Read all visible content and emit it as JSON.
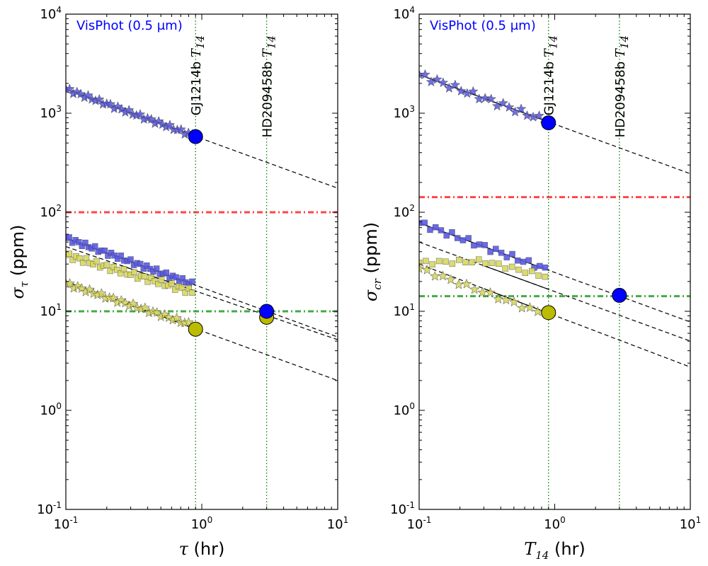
{
  "chart_data": [
    {
      "type": "scatter",
      "id": "left",
      "xscale": "log",
      "yscale": "log",
      "xlim": [
        0.1,
        10
      ],
      "ylim": [
        0.1,
        10000
      ],
      "xlabel_symbol": "τ",
      "xlabel_unit": " (hr)",
      "ylabel_symbol": "σ",
      "ylabel_sub": "τ",
      "ylabel_unit": " (ppm)",
      "xtick_exps": [
        "-1",
        "0",
        "1"
      ],
      "ytick_exps": [
        "-1",
        "0",
        "1",
        "2",
        "3",
        "4"
      ],
      "tick_base": "10",
      "annotation": "VisPhot (0.5 μm)",
      "annotation_color": "#0000ff",
      "vlines": [
        {
          "x": 0.9,
          "name": "GJ1214b",
          "suffix": "T",
          "suffix_sub": "14",
          "color": "#008000"
        },
        {
          "x": 3.0,
          "name": "HD209458b",
          "suffix": "T",
          "suffix_sub": "14",
          "color": "#008000"
        }
      ],
      "hlines": [
        {
          "y": 100,
          "color": "#ff3333",
          "style": "dashdot"
        },
        {
          "y": 10,
          "color": "#33a033",
          "style": "dashdot"
        }
      ],
      "series": [
        {
          "name": "blue-stars",
          "marker": "star",
          "color": "#6060e0",
          "x_range": [
            0.1,
            0.85
          ],
          "n": 35,
          "y_at_01": 1750,
          "slope": -0.5,
          "jitter": 0.02
        },
        {
          "name": "blue-squares",
          "marker": "square",
          "color": "#5a5ae6",
          "x_range": [
            0.1,
            0.85
          ],
          "n": 40,
          "y_at_01": 55,
          "slope": -0.5,
          "jitter": 0.025
        },
        {
          "name": "yellow-squares",
          "marker": "square",
          "color": "#d8d860",
          "x_range": [
            0.1,
            0.85
          ],
          "n": 38,
          "y_at_01": 37,
          "slope": -0.4,
          "jitter": 0.03
        },
        {
          "name": "yellow-stars",
          "marker": "star",
          "color": "#d8d860",
          "x_range": [
            0.1,
            0.8
          ],
          "n": 32,
          "y_at_01": 19,
          "slope": -0.45,
          "jitter": 0.02
        }
      ],
      "fits": [
        {
          "y_at_01": 1750,
          "slope": -0.5,
          "solid_to": 0.9
        },
        {
          "y_at_01": 55,
          "slope": -0.5,
          "solid_to": 0.9
        },
        {
          "y_at_01": 45,
          "slope": -0.47,
          "solid_from": 0.25,
          "solid_to": 0.9
        },
        {
          "y_at_01": 20,
          "slope": -0.5,
          "solid_from": 0.35,
          "solid_to": 0.9
        }
      ],
      "points": [
        {
          "x": 0.9,
          "y": 580,
          "color": "#0000ff"
        },
        {
          "x": 0.9,
          "y": 6.6,
          "color": "#bbbb00"
        },
        {
          "x": 3.0,
          "y": 8.7,
          "color": "#bbbb00"
        },
        {
          "x": 3.0,
          "y": 10,
          "color": "#0000ff"
        }
      ]
    },
    {
      "type": "scatter",
      "id": "right",
      "xscale": "log",
      "yscale": "log",
      "xlim": [
        0.1,
        10
      ],
      "ylim": [
        0.1,
        10000
      ],
      "xlabel_symbol": "T",
      "xlabel_sub": "14",
      "xlabel_unit": " (hr)",
      "ylabel_symbol": "σ",
      "ylabel_sub": "cr",
      "ylabel_unit": " (ppm)",
      "xtick_exps": [
        "-1",
        "0",
        "1"
      ],
      "ytick_exps": [
        "-1",
        "0",
        "1",
        "2",
        "3",
        "4"
      ],
      "tick_base": "10",
      "annotation": "VisPhot (0.5 μm)",
      "annotation_color": "#0000ff",
      "vlines": [
        {
          "x": 0.9,
          "name": "GJ1214b",
          "suffix": "T",
          "suffix_sub": "14",
          "color": "#008000"
        },
        {
          "x": 3.0,
          "name": "HD209458b",
          "suffix": "T",
          "suffix_sub": "14",
          "color": "#008000"
        }
      ],
      "hlines": [
        {
          "y": 142,
          "color": "#ff3333",
          "style": "dashdot"
        },
        {
          "y": 14.2,
          "color": "#33a033",
          "style": "dashdot"
        }
      ],
      "series": [
        {
          "name": "blue-stars",
          "marker": "star",
          "color": "#6060e0",
          "x_range": [
            0.1,
            0.85
          ],
          "n": 22,
          "y_at_01": 2450,
          "slope": -0.5,
          "jitter": 0.03
        },
        {
          "name": "blue-squares",
          "marker": "square",
          "color": "#5a5ae6",
          "x_range": [
            0.1,
            0.85
          ],
          "n": 24,
          "y_at_01": 78,
          "slope": -0.5,
          "jitter": 0.03
        },
        {
          "name": "yellow-squares",
          "marker": "square",
          "color": "#d8d860",
          "x_range": [
            0.1,
            0.85
          ],
          "n": 20,
          "y_at_01": 31,
          "slope": 0.0,
          "jitter": 0.02,
          "bend": true
        },
        {
          "name": "yellow-stars",
          "marker": "star",
          "color": "#d8d860",
          "x_range": [
            0.1,
            0.75
          ],
          "n": 16,
          "y_at_01": 27,
          "slope": -0.5,
          "jitter": 0.02
        }
      ],
      "fits": [
        {
          "y_at_01": 2450,
          "slope": -0.5,
          "solid_to": 0.9
        },
        {
          "y_at_01": 78,
          "slope": -0.5,
          "solid_to": 0.9
        },
        {
          "y_at_01": 50,
          "slope": -0.5,
          "solid_from": 0.3,
          "solid_to": 0.9
        },
        {
          "y_at_01": 30,
          "slope": -0.52,
          "solid_from": 0.3,
          "solid_to": 0.9
        }
      ],
      "points": [
        {
          "x": 0.9,
          "y": 800,
          "color": "#0000ff"
        },
        {
          "x": 0.9,
          "y": 9.7,
          "color": "#bbbb00"
        },
        {
          "x": 3.0,
          "y": 14.5,
          "color": "#0000ff"
        }
      ]
    }
  ]
}
